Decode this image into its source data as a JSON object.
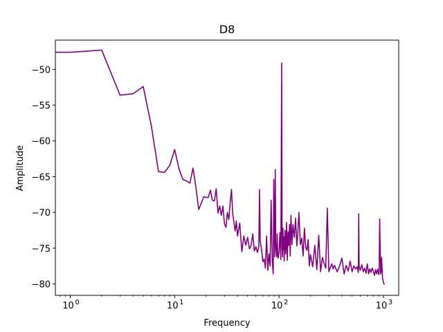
{
  "chart_data": {
    "type": "line",
    "title": "D8",
    "xlabel": "Frequency",
    "ylabel": "Amplitude",
    "xscale": "log",
    "xlim": [
      0.72,
      1400
    ],
    "ylim": [
      -81.6,
      -45.9
    ],
    "grid": false,
    "legend": "none",
    "x_ticks": [
      {
        "value": 1,
        "label": "10",
        "exp": "0"
      },
      {
        "value": 10,
        "label": "10",
        "exp": "1"
      },
      {
        "value": 100,
        "label": "10",
        "exp": "2"
      },
      {
        "value": 1000,
        "label": "10",
        "exp": "3"
      }
    ],
    "y_ticks": [
      -50,
      -55,
      -60,
      -65,
      -70,
      -75,
      -80
    ],
    "y_tick_labels": [
      "−50",
      "−55",
      "−60",
      "−65",
      "−70",
      "−75",
      "−80"
    ],
    "series": [
      {
        "color": "#800080",
        "x": [
          0.72,
          1,
          2,
          3,
          4,
          5,
          6,
          7,
          8,
          9,
          10,
          11,
          12,
          13,
          14,
          15,
          16,
          17,
          18,
          19,
          20,
          21,
          22,
          23,
          24,
          25,
          26,
          27,
          28,
          29,
          30,
          31,
          32,
          33,
          34,
          35,
          36,
          37,
          38,
          39,
          40,
          42,
          44,
          46,
          48,
          50,
          52,
          54,
          56,
          58,
          60,
          62,
          64,
          65,
          66,
          68,
          70,
          72,
          74,
          76,
          78,
          80,
          82,
          84,
          86,
          88,
          89,
          90,
          91,
          92,
          93,
          94,
          95,
          96,
          97,
          98,
          100,
          102,
          104,
          106,
          107,
          108,
          109,
          110,
          111,
          112,
          114,
          116,
          118,
          120,
          122,
          124,
          126,
          128,
          130,
          133,
          136,
          140,
          144,
          148,
          150,
          155,
          160,
          165,
          170,
          175,
          180,
          185,
          190,
          195,
          200,
          210,
          220,
          230,
          240,
          250,
          260,
          270,
          280,
          290,
          300,
          310,
          320,
          330,
          340,
          360,
          380,
          400,
          420,
          440,
          460,
          480,
          500,
          520,
          540,
          560,
          575,
          580,
          585,
          600,
          620,
          640,
          660,
          680,
          700,
          720,
          740,
          760,
          780,
          800,
          820,
          840,
          860,
          880,
          900,
          910,
          920,
          940,
          950,
          960,
          980,
          1000,
          1020
        ],
        "y": [
          -47.6,
          -47.6,
          -47.3,
          -53.6,
          -53.4,
          -52.4,
          -58,
          -64.3,
          -64.4,
          -63.4,
          -61.2,
          -63.9,
          -65.4,
          -65.6,
          -65.9,
          -63.8,
          -66.5,
          -69.6,
          -68.7,
          -67.8,
          -67.9,
          -67.9,
          -66.9,
          -68.3,
          -68.4,
          -66.7,
          -70.1,
          -69.1,
          -70.4,
          -69.1,
          -71.6,
          -72.1,
          -70,
          -71,
          -68.7,
          -66.8,
          -70.2,
          -71.4,
          -72.6,
          -71.2,
          -73.3,
          -71.5,
          -75.5,
          -73.3,
          -74.6,
          -73.5,
          -75.1,
          -74.6,
          -73,
          -75.4,
          -74.8,
          -75.6,
          -74.8,
          -66.8,
          -74,
          -75.2,
          -76.9,
          -76.5,
          -77.8,
          -73.3,
          -78.1,
          -75.8,
          -77.5,
          -68.3,
          -76.8,
          -78.6,
          -65.4,
          -72,
          -76.2,
          -64,
          -74.3,
          -75.5,
          -76.2,
          -73,
          -75.8,
          -76.4,
          -75.5,
          -72.8,
          -76.6,
          -49.1,
          -74.7,
          -76.2,
          -72.2,
          -75.2,
          -73.4,
          -76.8,
          -72.5,
          -75.8,
          -71.4,
          -76.7,
          -72.7,
          -74.6,
          -71.7,
          -76.1,
          -70.4,
          -74.5,
          -71.7,
          -73.5,
          -70.8,
          -74.7,
          -73.8,
          -70,
          -74.5,
          -73.6,
          -76.1,
          -72.2,
          -74.9,
          -75.3,
          -73.8,
          -77.5,
          -75.9,
          -77.6,
          -74.6,
          -78,
          -73.2,
          -78.3,
          -76.3,
          -77.1,
          -77.8,
          -69.4,
          -78.3,
          -77.7,
          -77.2,
          -77.9,
          -77.4,
          -78.3,
          -77.5,
          -76.4,
          -78.6,
          -77.4,
          -78.2,
          -76.8,
          -78.3,
          -77.5,
          -77.9,
          -77.6,
          -78.4,
          -70.2,
          -77.6,
          -78.1,
          -77.3,
          -78.3,
          -77.8,
          -78.5,
          -77.2,
          -78.6,
          -77.9,
          -78.4,
          -77.8,
          -78.2,
          -78.8,
          -78,
          -78.6,
          -77.9,
          -78.7,
          -78.4,
          -70.9,
          -78.6,
          -78.3,
          -76.3,
          -79.2,
          -79.8,
          -80.1
        ]
      }
    ]
  }
}
